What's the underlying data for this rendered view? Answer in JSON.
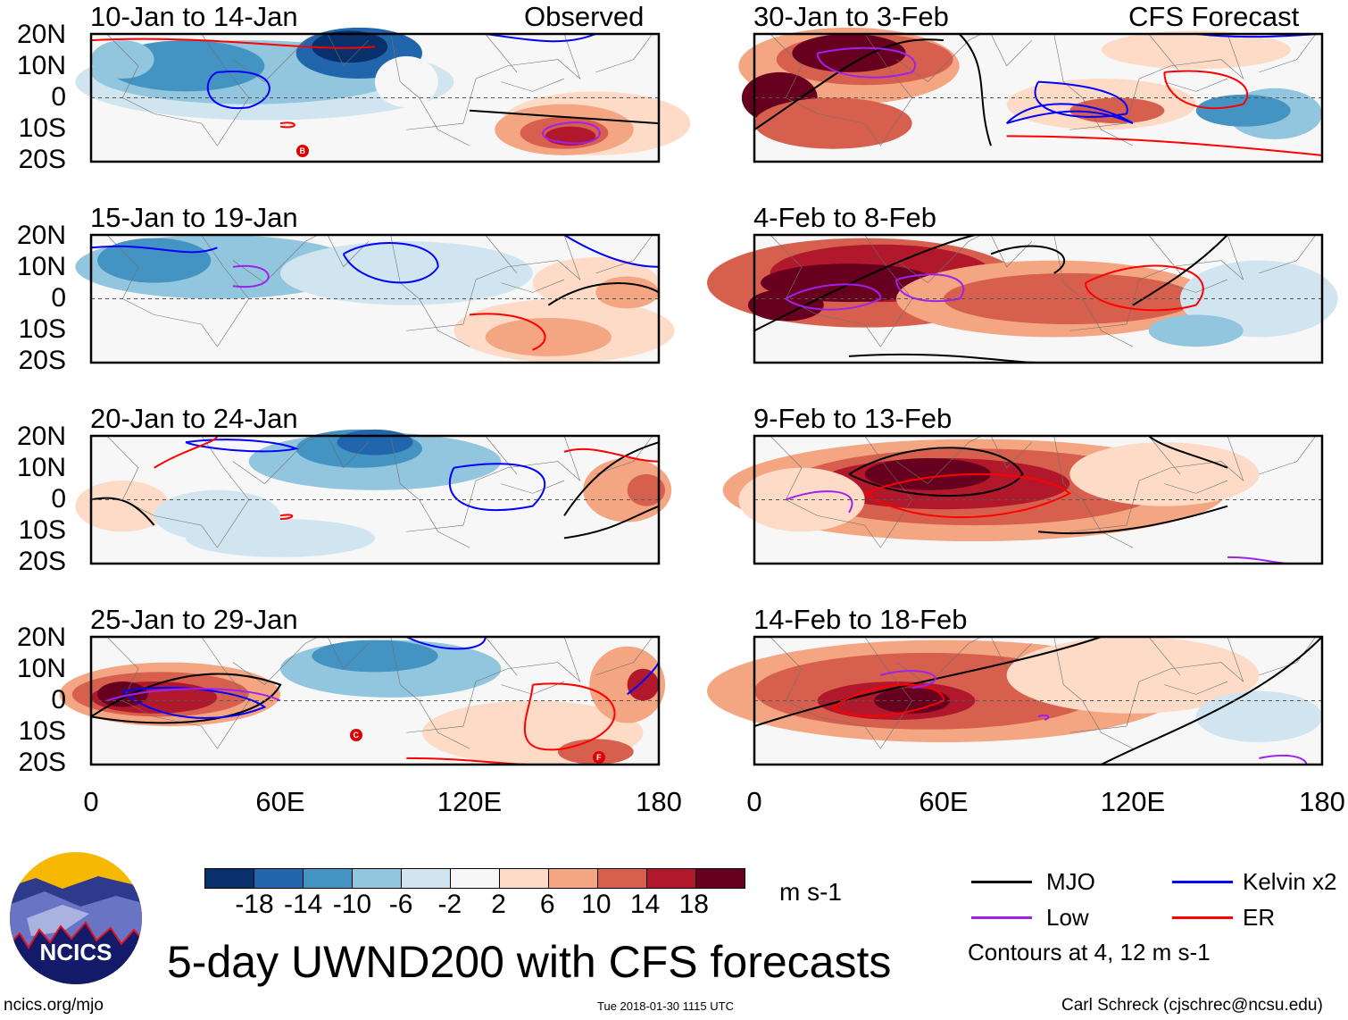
{
  "header": {
    "left_label": "Observed",
    "right_label": "CFS Forecast"
  },
  "panels": [
    {
      "title": "10-Jan to 14-Jan",
      "storms": [
        "B"
      ]
    },
    {
      "title": "15-Jan to 19-Jan",
      "storms": []
    },
    {
      "title": "20-Jan to 24-Jan",
      "storms": []
    },
    {
      "title": "25-Jan to 29-Jan",
      "storms": [
        "C",
        "F"
      ]
    },
    {
      "title": "30-Jan to 3-Feb",
      "storms": []
    },
    {
      "title": "4-Feb to 8-Feb",
      "storms": []
    },
    {
      "title": "9-Feb to 13-Feb",
      "storms": []
    },
    {
      "title": "14-Feb to 18-Feb",
      "storms": []
    }
  ],
  "lat_labels": [
    "20N",
    "10N",
    "0",
    "10S",
    "20S"
  ],
  "lon_labels": [
    "0",
    "60E",
    "120E",
    "180"
  ],
  "colorbar": {
    "colors": [
      "#08306b",
      "#2166ac",
      "#4393c3",
      "#92c5de",
      "#d1e5f0",
      "#f7f7f7",
      "#fddbc7",
      "#f4a582",
      "#d6604d",
      "#b2182b",
      "#67001f"
    ],
    "ticks": [
      "-18",
      "-14",
      "-10",
      "-6",
      "-2",
      "2",
      "6",
      "10",
      "14",
      "18"
    ],
    "units": "m s-1"
  },
  "legend": {
    "items": [
      {
        "label": "MJO",
        "color": "#000000"
      },
      {
        "label": "Kelvin x2",
        "color": "#0000ff"
      },
      {
        "label": "Low",
        "color": "#a020f0"
      },
      {
        "label": "ER",
        "color": "#ff0000"
      }
    ],
    "note": "Contours at 4, 12 m s-1"
  },
  "footer": {
    "title": "5-day UWND200 with CFS forecasts",
    "logo_text": "NCICS",
    "url": "ncics.org/mjo",
    "timestamp": "Tue 2018-01-30 1115 UTC",
    "author": "Carl Schreck (cjschrec@ncsu.edu)"
  }
}
